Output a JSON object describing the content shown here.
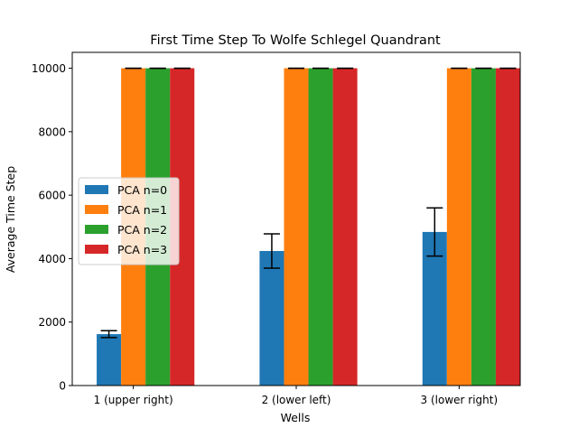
{
  "chart_data": {
    "type": "bar",
    "title": "First Time Step To Wolfe Schlegel Quandrant",
    "xlabel": "Wells",
    "ylabel": "Average Time Step",
    "categories": [
      "1 (upper right)",
      "2 (lower left)",
      "3 (lower right)"
    ],
    "ylim": [
      0,
      10500
    ],
    "yticks": [
      0,
      2000,
      4000,
      6000,
      8000,
      10000
    ],
    "grid": false,
    "legend_position": "center-left",
    "series": [
      {
        "name": "PCA n=0",
        "color": "#1f77b4",
        "values": [
          1620,
          4240,
          4840
        ],
        "errors": [
          110,
          540,
          760
        ]
      },
      {
        "name": "PCA n=1",
        "color": "#ff7f0e",
        "values": [
          10000,
          10000,
          10000
        ],
        "errors": [
          0,
          0,
          0
        ]
      },
      {
        "name": "PCA n=2",
        "color": "#2ca02c",
        "values": [
          10000,
          10000,
          10000
        ],
        "errors": [
          0,
          0,
          0
        ]
      },
      {
        "name": "PCA n=3",
        "color": "#d62728",
        "values": [
          10000,
          10000,
          10000
        ],
        "errors": [
          0,
          0,
          0
        ]
      }
    ]
  }
}
